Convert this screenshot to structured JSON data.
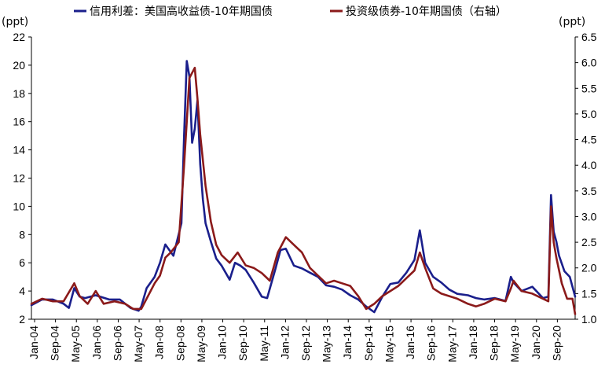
{
  "chart_data": {
    "type": "line",
    "legend": {
      "placement": "top"
    },
    "grid": false,
    "left_axis": {
      "unit": "(ppt)",
      "ylim": [
        2,
        22
      ],
      "ticks": [
        "2",
        "4",
        "6",
        "8",
        "10",
        "12",
        "14",
        "16",
        "18",
        "20",
        "22"
      ]
    },
    "right_axis": {
      "unit": "(ppt)",
      "ylim": [
        1.0,
        6.5
      ],
      "ticks": [
        "1.0",
        "1.5",
        "2.0",
        "2.5",
        "3.0",
        "3.5",
        "4.0",
        "4.5",
        "5.0",
        "5.5",
        "6.0",
        "6.5"
      ]
    },
    "x_tick_labels": [
      "Jan-04",
      "Sep-04",
      "May-05",
      "Jan-06",
      "Sep-06",
      "May-07",
      "Jan-08",
      "Sep-08",
      "May-09",
      "Jan-10",
      "Sep-10",
      "May-11",
      "Jan-12",
      "Sep-12",
      "May-13",
      "Jan-14",
      "Sep-14",
      "May-15",
      "Jan-16",
      "Sep-16",
      "May-17",
      "Jan-18",
      "Sep-18",
      "May-19",
      "Jan-20",
      "Sep-20"
    ],
    "x_range": [
      "2004-01",
      "2020-12"
    ],
    "series": [
      {
        "name": "信用利差：美国高收益债-10年期国债",
        "axis": "left",
        "color": "#1a1f8c",
        "x": [
          "2004-01",
          "2004-05",
          "2004-09",
          "2005-01",
          "2005-03",
          "2005-05",
          "2005-07",
          "2005-09",
          "2006-01",
          "2006-06",
          "2006-10",
          "2007-02",
          "2007-05",
          "2007-06",
          "2007-08",
          "2007-11",
          "2008-01",
          "2008-03",
          "2008-06",
          "2008-09",
          "2008-10",
          "2008-11",
          "2008-12",
          "2009-01",
          "2009-02",
          "2009-03",
          "2009-04",
          "2009-05",
          "2009-06",
          "2009-08",
          "2009-10",
          "2009-12",
          "2010-03",
          "2010-05",
          "2010-07",
          "2010-09",
          "2010-12",
          "2011-03",
          "2011-05",
          "2011-08",
          "2011-10",
          "2011-12",
          "2012-03",
          "2012-06",
          "2012-09",
          "2012-12",
          "2013-03",
          "2013-06",
          "2013-09",
          "2013-12",
          "2014-03",
          "2014-06",
          "2014-09",
          "2014-12",
          "2015-03",
          "2015-06",
          "2015-09",
          "2015-12",
          "2016-02",
          "2016-04",
          "2016-07",
          "2016-10",
          "2017-01",
          "2017-04",
          "2017-08",
          "2017-11",
          "2018-02",
          "2018-06",
          "2018-10",
          "2018-12",
          "2019-01",
          "2019-04",
          "2019-08",
          "2019-12",
          "2020-02",
          "2020-03",
          "2020-04",
          "2020-05",
          "2020-06",
          "2020-08",
          "2020-10",
          "2020-12"
        ],
        "values": [
          3.0,
          3.4,
          3.4,
          3.1,
          2.8,
          4.2,
          3.6,
          3.5,
          3.7,
          3.4,
          3.4,
          2.8,
          2.6,
          2.9,
          4.2,
          5.0,
          6.0,
          7.3,
          6.5,
          8.8,
          15.0,
          20.3,
          19.2,
          14.5,
          15.5,
          17.5,
          13.0,
          10.5,
          8.8,
          7.5,
          6.3,
          5.8,
          4.8,
          6.0,
          5.8,
          5.5,
          4.6,
          3.6,
          3.5,
          5.5,
          6.9,
          7.0,
          5.8,
          5.6,
          5.3,
          5.0,
          4.4,
          4.3,
          4.1,
          3.7,
          3.4,
          2.9,
          2.5,
          3.6,
          4.5,
          4.6,
          5.3,
          6.2,
          8.3,
          6.0,
          5.0,
          4.6,
          4.1,
          3.8,
          3.7,
          3.5,
          3.4,
          3.5,
          3.3,
          5.0,
          4.6,
          4.0,
          4.3,
          3.5,
          3.6,
          10.8,
          8.2,
          7.5,
          6.5,
          5.4,
          5.0,
          3.6
        ]
      },
      {
        "name": "投资级债券-10年期国债（右轴）",
        "axis": "right",
        "color": "#8b1a1a",
        "x": [
          "2004-01",
          "2004-05",
          "2004-09",
          "2005-01",
          "2005-05",
          "2005-07",
          "2005-10",
          "2006-01",
          "2006-04",
          "2006-08",
          "2006-12",
          "2007-03",
          "2007-06",
          "2007-08",
          "2007-11",
          "2008-01",
          "2008-03",
          "2008-05",
          "2008-08",
          "2008-10",
          "2008-12",
          "2009-02",
          "2009-03",
          "2009-04",
          "2009-06",
          "2009-08",
          "2009-10",
          "2009-12",
          "2010-03",
          "2010-06",
          "2010-09",
          "2010-12",
          "2011-03",
          "2011-06",
          "2011-09",
          "2011-12",
          "2012-03",
          "2012-06",
          "2012-09",
          "2012-12",
          "2013-03",
          "2013-06",
          "2013-09",
          "2013-12",
          "2014-03",
          "2014-06",
          "2014-09",
          "2014-12",
          "2015-03",
          "2015-06",
          "2015-09",
          "2015-12",
          "2016-02",
          "2016-04",
          "2016-07",
          "2016-10",
          "2017-01",
          "2017-04",
          "2017-08",
          "2017-11",
          "2018-02",
          "2018-06",
          "2018-10",
          "2018-12",
          "2019-01",
          "2019-04",
          "2019-08",
          "2019-12",
          "2020-02",
          "2020-03",
          "2020-04",
          "2020-05",
          "2020-07",
          "2020-09",
          "2020-11",
          "2020-12"
        ],
        "values": [
          1.3,
          1.4,
          1.35,
          1.35,
          1.7,
          1.45,
          1.3,
          1.55,
          1.3,
          1.35,
          1.3,
          1.2,
          1.2,
          1.4,
          1.7,
          1.85,
          2.2,
          2.3,
          2.5,
          4.0,
          5.7,
          5.9,
          5.3,
          4.6,
          3.6,
          2.9,
          2.45,
          2.25,
          2.1,
          2.3,
          2.05,
          2.0,
          1.9,
          1.75,
          2.3,
          2.6,
          2.45,
          2.3,
          2.0,
          1.85,
          1.7,
          1.75,
          1.7,
          1.65,
          1.45,
          1.2,
          1.3,
          1.45,
          1.55,
          1.65,
          1.8,
          1.95,
          2.3,
          2.0,
          1.6,
          1.5,
          1.45,
          1.4,
          1.3,
          1.25,
          1.3,
          1.4,
          1.35,
          1.6,
          1.75,
          1.55,
          1.5,
          1.4,
          1.35,
          3.2,
          2.5,
          2.2,
          1.7,
          1.4,
          1.4,
          1.1
        ]
      }
    ]
  }
}
